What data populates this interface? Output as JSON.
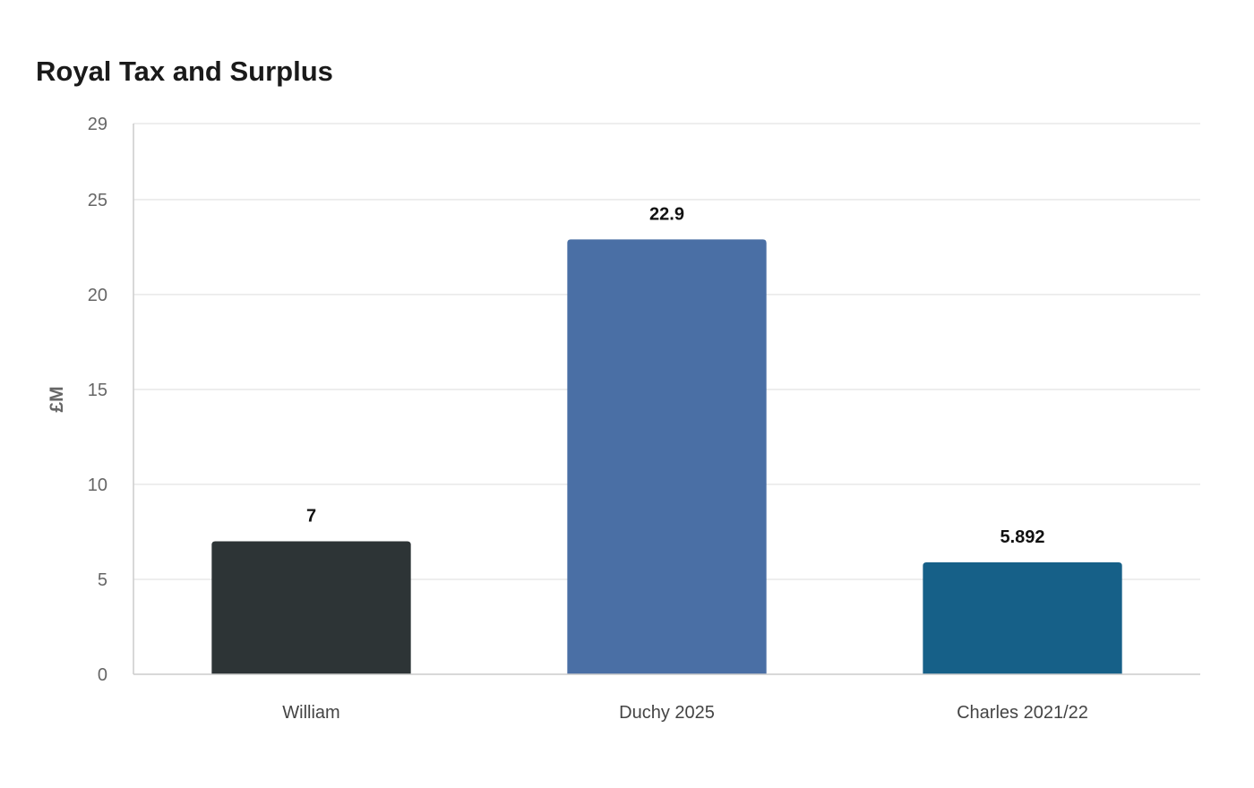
{
  "chart_data": {
    "type": "bar",
    "title": "Royal Tax and Surplus",
    "xlabel": "",
    "ylabel": "£M",
    "categories": [
      "William",
      "Duchy 2025",
      "Charles 2021/22"
    ],
    "values": [
      7,
      22.9,
      5.892
    ],
    "value_labels": [
      "7",
      "22.9",
      "5.892"
    ],
    "bar_colors": [
      "#2d3436",
      "#4a6fa5",
      "#166088"
    ],
    "ylim": [
      0,
      29
    ],
    "yticks": [
      0,
      5,
      10,
      15,
      20,
      25,
      29
    ],
    "grid": true,
    "legend": "none"
  }
}
